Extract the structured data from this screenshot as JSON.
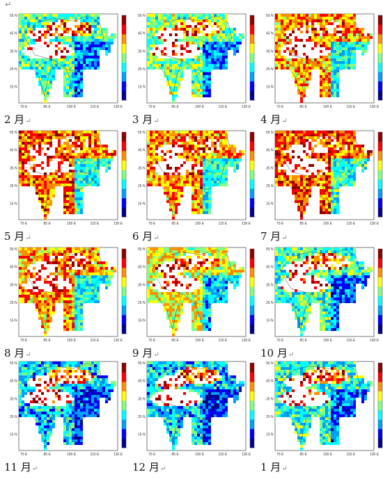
{
  "doc_mark": "↵",
  "return_mark": "↵",
  "chart_data": {
    "type": "heatmap",
    "colorscale": {
      "min": 0,
      "max": 1.2,
      "ticks": [
        "0",
        "0.2",
        "0.4",
        "0.6",
        "0.8",
        "1",
        "1.2"
      ],
      "colors": [
        "#00008f",
        "#0000ff",
        "#00a0ff",
        "#00ffff",
        "#80ff80",
        "#ffff00",
        "#ff9000",
        "#ff0000",
        "#8f0000"
      ]
    },
    "x_ticks": [
      "70 E",
      "85 E",
      "100 E",
      "115 E",
      "130 E"
    ],
    "y_ticks": [
      "55 N",
      "45 N",
      "35 N",
      "25 N",
      "15 N"
    ],
    "panels": [
      {
        "label": "2 月",
        "level": 0.45
      },
      {
        "label": "3 月",
        "level": 0.5
      },
      {
        "label": "4 月",
        "level": 0.7
      },
      {
        "label": "5 月",
        "level": 0.75
      },
      {
        "label": "6 月",
        "level": 0.72
      },
      {
        "label": "7 月",
        "level": 0.78
      },
      {
        "label": "8 月",
        "level": 0.7
      },
      {
        "label": "9 月",
        "level": 0.6
      },
      {
        "label": "10 月",
        "level": 0.45
      },
      {
        "label": "11 月",
        "level": 0.35
      },
      {
        "label": "12 月",
        "level": 0.35
      },
      {
        "label": "1 月",
        "level": 0.42
      }
    ]
  }
}
